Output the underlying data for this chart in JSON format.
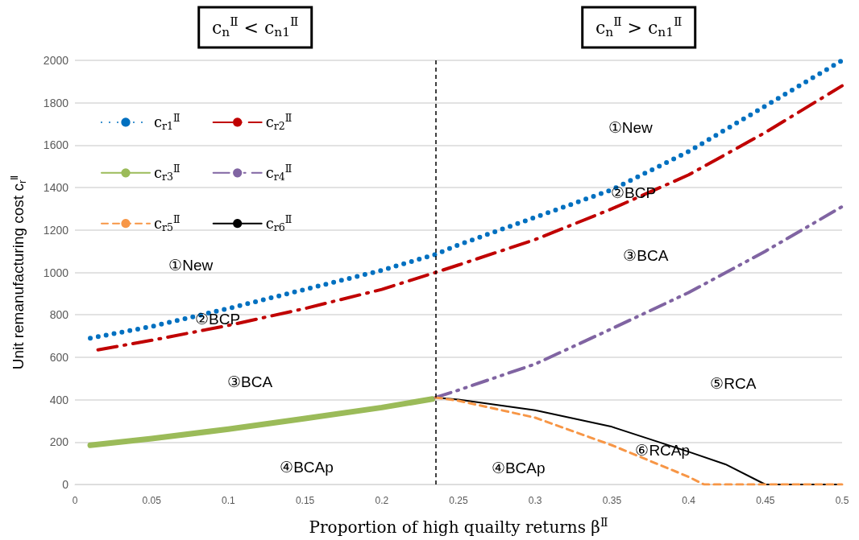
{
  "chart_data": {
    "type": "line",
    "xlabel": "Proportion of high quailty returns β$^{Ⅱ}$",
    "ylabel": "Unit remanufacturing cost c$_{r}$$^{Ⅱ}$",
    "xlim": [
      0,
      0.5
    ],
    "xticks": [
      0,
      0.05,
      0.1,
      0.15,
      0.2,
      0.25,
      0.3,
      0.35,
      0.4,
      0.45,
      0.5
    ],
    "ylim": [
      0,
      2000
    ],
    "yticks": [
      0,
      200,
      400,
      600,
      800,
      1000,
      1200,
      1400,
      1600,
      1800,
      2000
    ],
    "grid": "y",
    "legend": "top left",
    "marker": "none",
    "series": [
      {
        "name": "c$_{r1}$$^{Ⅱ}$",
        "color": "#0070c0",
        "line_style": "dotted",
        "x": [
          0.01,
          0.05,
          0.1,
          0.15,
          0.2,
          0.235,
          0.25,
          0.3,
          0.35,
          0.4,
          0.45,
          0.5
        ],
        "values": [
          690,
          745,
          830,
          920,
          1010,
          1085,
          1130,
          1260,
          1390,
          1570,
          1785,
          2000
        ]
      },
      {
        "name": "c$_{r2}$$^{Ⅱ}$",
        "color": "#c00000",
        "line_style": "dashdot",
        "x": [
          0.015,
          0.05,
          0.1,
          0.15,
          0.2,
          0.235,
          0.25,
          0.3,
          0.35,
          0.4,
          0.45,
          0.5
        ],
        "values": [
          635,
          680,
          750,
          830,
          920,
          1000,
          1035,
          1155,
          1300,
          1460,
          1660,
          1880
        ]
      },
      {
        "name": "c$_{r3}$$^{Ⅱ}$",
        "color": "#9bbb59",
        "line_style": "solid",
        "x": [
          0.01,
          0.05,
          0.1,
          0.15,
          0.2,
          0.233
        ],
        "values": [
          185,
          216,
          261,
          311,
          363,
          403
        ]
      },
      {
        "name": "c$_{r4}$$^{Ⅱ}$",
        "color": "#8064a2",
        "line_style": "dashdotdot",
        "x": [
          0.235,
          0.25,
          0.3,
          0.35,
          0.4,
          0.45,
          0.5
        ],
        "values": [
          410,
          445,
          568,
          735,
          905,
          1100,
          1310
        ]
      },
      {
        "name": "c$_{r5}$$^{Ⅱ}$",
        "color": "#f79646",
        "line_style": "dashed",
        "x": [
          0.235,
          0.25,
          0.3,
          0.35,
          0.4,
          0.41,
          0.45,
          0.5
        ],
        "values": [
          410,
          395,
          315,
          185,
          36,
          0,
          0,
          0
        ]
      },
      {
        "name": "c$_{r6}$$^{Ⅱ}$",
        "color": "#000000",
        "line_style": "solid",
        "x": [
          0.235,
          0.25,
          0.3,
          0.35,
          0.4,
          0.424,
          0.45,
          0.5
        ],
        "values": [
          410,
          400,
          350,
          272,
          154,
          95,
          0,
          0
        ]
      }
    ],
    "ref_lines": [
      {
        "axis": "x",
        "value": 0.235,
        "color": "#000000",
        "line_style": "dashed"
      }
    ],
    "annotations": [
      "c$_{n}$$^{Ⅱ}$ < c$_{n1}$$^{Ⅱ}$",
      "c$_{n}$$^{Ⅱ}$ > c$_{n1}$$^{Ⅱ}$",
      "①New",
      "②BCP",
      "③BCA",
      "④BCAp",
      "①New",
      "②BCP",
      "③BCA",
      "⑤RCA",
      "⑥RCAp",
      "④BCAp"
    ]
  }
}
